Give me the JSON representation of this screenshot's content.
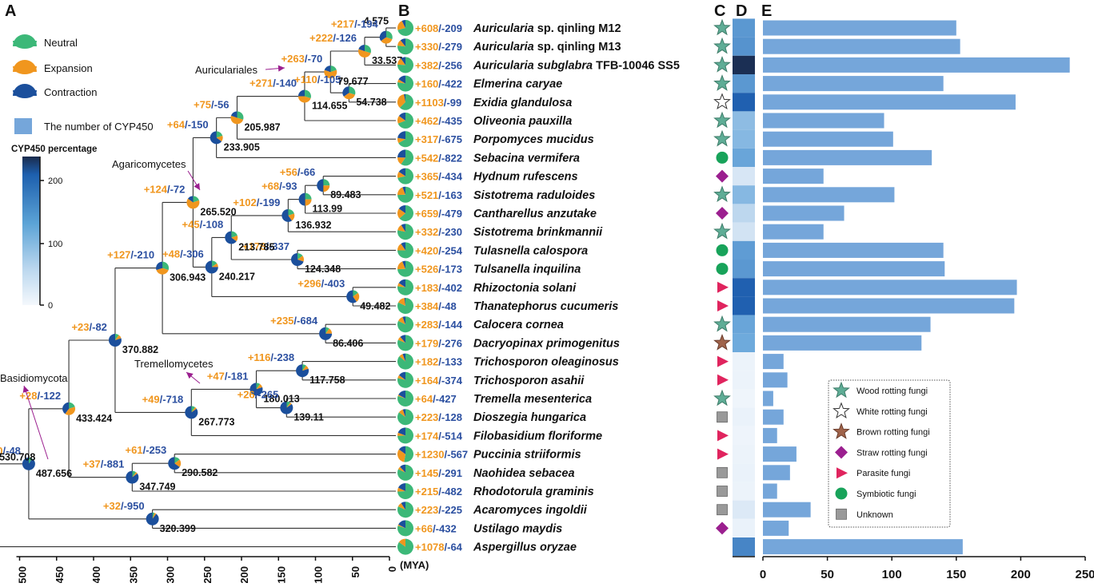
{
  "panels": {
    "a": "A",
    "b": "B",
    "c": "C",
    "d": "D",
    "e": "E"
  },
  "legend_a": {
    "neutral": "Neutral",
    "expansion": "Expansion",
    "contraction": "Contraction",
    "cyp_count": "The number of CYP450",
    "colorbar_title": "CYP450 percentage",
    "colorbar_ticks": [
      "200",
      "100",
      "0"
    ]
  },
  "colors": {
    "neutral": "#3cb878",
    "expansion": "#f0961e",
    "contraction": "#1b4f9c",
    "bar": "#75a6da",
    "wood": "#5fad96",
    "brown": "#a0634a",
    "straw": "#9b1f8f",
    "parasite": "#e0245e",
    "symbiotic": "#18a35a",
    "unknown": "#999999"
  },
  "clades": [
    "Auriculariales",
    "Agaricomycetes",
    "Tremellomycetes",
    "Basidiomycota"
  ],
  "axis_tree": {
    "ticks": [
      "500",
      "450",
      "400",
      "350",
      "300",
      "250",
      "200",
      "150",
      "100",
      "50",
      "0"
    ],
    "unit": "(MYA)"
  },
  "nodes": [
    {
      "id": "n1",
      "age": 4.575,
      "label": "4.575",
      "gain": "+217",
      "loss": "/-194",
      "pie": [
        0.3,
        0.35,
        0.35
      ]
    },
    {
      "id": "n2",
      "age": 33.537,
      "label": "33.537",
      "gain": "+222",
      "loss": "/-126",
      "pie": [
        0.3,
        0.5,
        0.2
      ]
    },
    {
      "id": "n3",
      "age": 54.738,
      "label": "54.738",
      "gain": "+110",
      "loss": "/-105",
      "pie": [
        0.3,
        0.35,
        0.35
      ]
    },
    {
      "id": "n4",
      "age": 79.677,
      "label": "79.677",
      "gain": "+263",
      "loss": "/-70",
      "pie": [
        0.2,
        0.6,
        0.2
      ]
    },
    {
      "id": "n5",
      "age": 114.655,
      "label": "114.655",
      "gain": "+271",
      "loss": "/-140",
      "pie": [
        0.3,
        0.45,
        0.25
      ]
    },
    {
      "id": "n6",
      "age": 205.987,
      "label": "205.987",
      "gain": "+75",
      "loss": "/-56",
      "pie": [
        0.3,
        0.5,
        0.2
      ]
    },
    {
      "id": "n7",
      "age": 233.905,
      "label": "233.905",
      "gain": "+64",
      "loss": "/-150",
      "pie": [
        0.2,
        0.15,
        0.65
      ]
    },
    {
      "id": "n8",
      "age": 89.483,
      "label": "89.483",
      "gain": "+56",
      "loss": "/-66",
      "pie": [
        0.25,
        0.25,
        0.5
      ]
    },
    {
      "id": "n9",
      "age": 113.99,
      "label": "113.99",
      "gain": "+68",
      "loss": "/-93",
      "pie": [
        0.25,
        0.25,
        0.5
      ]
    },
    {
      "id": "n10",
      "age": 136.932,
      "label": "136.932",
      "gain": "+102",
      "loss": "/-199",
      "pie": [
        0.2,
        0.2,
        0.6
      ]
    },
    {
      "id": "n11",
      "age": 124.348,
      "label": "124.348",
      "gain": "+176",
      "loss": "/-337",
      "pie": [
        0.15,
        0.15,
        0.7
      ]
    },
    {
      "id": "n12",
      "age": 213.785,
      "label": "213.785",
      "gain": "+45",
      "loss": "/-108",
      "pie": [
        0.2,
        0.15,
        0.65
      ]
    },
    {
      "id": "n13",
      "age": 49.482,
      "label": "49.482",
      "gain": "+296",
      "loss": "/-403",
      "pie": [
        0.15,
        0.25,
        0.6
      ]
    },
    {
      "id": "n14",
      "age": 240.217,
      "label": "240.217",
      "gain": "+48",
      "loss": "/-306",
      "pie": [
        0.15,
        0.1,
        0.75
      ]
    },
    {
      "id": "n15",
      "age": 265.52,
      "label": "265.520",
      "gain": "+124",
      "loss": "/-72",
      "pie": [
        0.2,
        0.65,
        0.15
      ]
    },
    {
      "id": "n16",
      "age": 86.406,
      "label": "86.406",
      "gain": "+235",
      "loss": "/-684",
      "pie": [
        0.1,
        0.15,
        0.75
      ]
    },
    {
      "id": "n17",
      "age": 306.943,
      "label": "306.943",
      "gain": "+127",
      "loss": "/-210",
      "pie": [
        0.3,
        0.4,
        0.3
      ]
    },
    {
      "id": "n18",
      "age": 370.882,
      "label": "370.882",
      "gain": "+23",
      "loss": "/-82",
      "pie": [
        0.1,
        0.1,
        0.8
      ]
    },
    {
      "id": "n19",
      "age": 117.758,
      "label": "117.758",
      "gain": "+116",
      "loss": "/-238",
      "pie": [
        0.1,
        0.1,
        0.8
      ]
    },
    {
      "id": "n20",
      "age": 180.013,
      "label": "180.013",
      "gain": "+47",
      "loss": "/-181",
      "pie": [
        0.1,
        0.1,
        0.8
      ]
    },
    {
      "id": "n21",
      "age": 139.11,
      "label": "139.11",
      "gain": "+26",
      "loss": "/-265",
      "pie": [
        0.1,
        0.05,
        0.85
      ]
    },
    {
      "id": "n22",
      "age": 267.773,
      "label": "267.773",
      "gain": "+49",
      "loss": "/-718",
      "pie": [
        0.1,
        0.05,
        0.85
      ]
    },
    {
      "id": "n23",
      "age": 433.424,
      "label": "433.424",
      "gain": "+28",
      "loss": "/-122",
      "pie": [
        0.2,
        0.4,
        0.4
      ]
    },
    {
      "id": "n24",
      "age": 290.582,
      "label": "290.582",
      "gain": "+61",
      "loss": "/-253",
      "pie": [
        0.15,
        0.2,
        0.65
      ]
    },
    {
      "id": "n25",
      "age": 347.749,
      "label": "347.749",
      "gain": "+37",
      "loss": "/-881",
      "pie": [
        0.1,
        0.05,
        0.85
      ]
    },
    {
      "id": "n26",
      "age": 487.656,
      "label": "487.656",
      "gain": "+0",
      "loss": "/-48",
      "pie": [
        0.1,
        0.0,
        0.9
      ]
    },
    {
      "id": "n27",
      "age": 320.399,
      "label": "320.399",
      "gain": "+32",
      "loss": "/-950",
      "pie": [
        0.05,
        0.05,
        0.9
      ]
    },
    {
      "id": "n28",
      "age": 530.708,
      "label": "530.708",
      "gain": "",
      "loss": "",
      "pie": [
        1,
        0,
        0
      ]
    }
  ],
  "taxa": [
    {
      "genus": "Auricularia",
      "rest": " sp. qinling M12",
      "gain": "+608",
      "loss": "/-209",
      "cyp": 150,
      "pct": 120,
      "life": "wood"
    },
    {
      "genus": "Auricularia",
      "rest": " sp. qinling M13",
      "gain": "+330",
      "loss": "/-279",
      "cyp": 153,
      "pct": 125,
      "life": "wood"
    },
    {
      "genus": "Auricularia subglabra",
      "rest": " TFB-10046 SS5",
      "gain": "+382",
      "loss": "/-256",
      "cyp": 238,
      "pct": 235,
      "life": "wood"
    },
    {
      "genus": "Elmerina caryae",
      "rest": "",
      "gain": "+160",
      "loss": "/-422",
      "cyp": 140,
      "pct": 120,
      "life": "wood"
    },
    {
      "genus": "Exidia glandulosa",
      "rest": "",
      "gain": "+1103",
      "loss": "/-99",
      "cyp": 196,
      "pct": 180,
      "life": "white"
    },
    {
      "genus": "Oliveonia pauxilla",
      "rest": "",
      "gain": "+462",
      "loss": "/-435",
      "cyp": 94,
      "pct": 80,
      "life": "wood"
    },
    {
      "genus": "Porpomyces mucidus",
      "rest": "",
      "gain": "+317",
      "loss": "/-675",
      "cyp": 101,
      "pct": 85,
      "life": "wood"
    },
    {
      "genus": "Sebacina vermifera",
      "rest": "",
      "gain": "+542",
      "loss": "/-822",
      "cyp": 131,
      "pct": 105,
      "life": "symbiotic"
    },
    {
      "genus": "Hydnum rufescens",
      "rest": "",
      "gain": "+365",
      "loss": "/-434",
      "cyp": 47,
      "pct": 30,
      "life": "straw"
    },
    {
      "genus": "Sistotrema raduloides",
      "rest": "",
      "gain": "+521",
      "loss": "/-163",
      "cyp": 102,
      "pct": 85,
      "life": "wood"
    },
    {
      "genus": "Cantharellus anzutake",
      "rest": "",
      "gain": "+659",
      "loss": "/-479",
      "cyp": 63,
      "pct": 50,
      "life": "straw"
    },
    {
      "genus": "Sistotrema brinkmannii",
      "rest": "",
      "gain": "+332",
      "loss": "/-230",
      "cyp": 47,
      "pct": 35,
      "life": "wood"
    },
    {
      "genus": "Tulasnella calospora",
      "rest": "",
      "gain": "+420",
      "loss": "/-254",
      "cyp": 140,
      "pct": 115,
      "life": "symbiotic"
    },
    {
      "genus": "Tulsanella inquilina",
      "rest": "",
      "gain": "+526",
      "loss": "/-173",
      "cyp": 141,
      "pct": 120,
      "life": "symbiotic"
    },
    {
      "genus": "Rhizoctonia solani",
      "rest": "",
      "gain": "+183",
      "loss": "/-402",
      "cyp": 197,
      "pct": 180,
      "life": "parasite"
    },
    {
      "genus": "Thanatephorus cucumeris",
      "rest": "",
      "gain": "+384",
      "loss": "/-48",
      "cyp": 195,
      "pct": 180,
      "life": "parasite"
    },
    {
      "genus": "Calocera cornea",
      "rest": "",
      "gain": "+283",
      "loss": "/-144",
      "cyp": 130,
      "pct": 105,
      "life": "wood"
    },
    {
      "genus": "Dacryopinax primogenitus",
      "rest": "",
      "gain": "+179",
      "loss": "/-276",
      "cyp": 123,
      "pct": 100,
      "life": "brown"
    },
    {
      "genus": "Trichosporon oleaginosus",
      "rest": "",
      "gain": "+182",
      "loss": "/-133",
      "cyp": 16,
      "pct": 8,
      "life": "parasite"
    },
    {
      "genus": "Trichosporon asahii",
      "rest": "",
      "gain": "+164",
      "loss": "/-374",
      "cyp": 19,
      "pct": 8,
      "life": "parasite"
    },
    {
      "genus": "Tremella mesenterica",
      "rest": "",
      "gain": "+64",
      "loss": "/-427",
      "cyp": 8,
      "pct": 5,
      "life": "wood"
    },
    {
      "genus": "Dioszegia hungarica",
      "rest": "",
      "gain": "+223",
      "loss": "/-128",
      "cyp": 16,
      "pct": 10,
      "life": "unknown"
    },
    {
      "genus": "Filobasidium floriforme",
      "rest": "",
      "gain": "+174",
      "loss": "/-514",
      "cyp": 11,
      "pct": 6,
      "life": "parasite"
    },
    {
      "genus": "Puccinia striiformis",
      "rest": "",
      "gain": "+1230",
      "loss": "/-567",
      "cyp": 26,
      "pct": 8,
      "life": "parasite"
    },
    {
      "genus": "Naohidea sebacea",
      "rest": "",
      "gain": "+145",
      "loss": "/-291",
      "cyp": 21,
      "pct": 10,
      "life": "unknown"
    },
    {
      "genus": "Rhodotorula graminis",
      "rest": "",
      "gain": "+215",
      "loss": "/-482",
      "cyp": 11,
      "pct": 8,
      "life": "unknown"
    },
    {
      "genus": "Acaromyces ingoldii",
      "rest": "",
      "gain": "+223",
      "loss": "/-225",
      "cyp": 37,
      "pct": 25,
      "life": "unknown"
    },
    {
      "genus": "Ustilago maydis",
      "rest": "",
      "gain": "+66",
      "loss": "/-432",
      "cyp": 20,
      "pct": 10,
      "life": "straw"
    },
    {
      "genus": "Aspergillus oryzae",
      "rest": "",
      "gain": "+1078",
      "loss": "/-64",
      "cyp": 155,
      "pct": 140,
      "life": "wood_none"
    }
  ],
  "lifestyle_legend": [
    {
      "key": "wood",
      "label": "Wood rotting fungi"
    },
    {
      "key": "white",
      "label": "White rotting fungi"
    },
    {
      "key": "brown",
      "label": "Brown rotting fungi"
    },
    {
      "key": "straw",
      "label": "Straw rotting fungi"
    },
    {
      "key": "parasite",
      "label": "Parasite fungi"
    },
    {
      "key": "symbiotic",
      "label": "Symbiotic fungi"
    },
    {
      "key": "unknown",
      "label": "Unknown"
    }
  ],
  "chart_data": {
    "type": "bar",
    "orientation": "horizontal",
    "categories": [
      "Auricularia sp. qinling M12",
      "Auricularia sp. qinling M13",
      "Auricularia subglabra TFB-10046 SS5",
      "Elmerina caryae",
      "Exidia glandulosa",
      "Oliveonia pauxilla",
      "Porpomyces mucidus",
      "Sebacina vermifera",
      "Hydnum rufescens",
      "Sistotrema raduloides",
      "Cantharellus anzutake",
      "Sistotrema brinkmannii",
      "Tulasnella calospora",
      "Tulsanella inquilina",
      "Rhizoctonia solani",
      "Thanatephorus cucumeris",
      "Calocera cornea",
      "Dacryopinax primogenitus",
      "Trichosporon oleaginosus",
      "Trichosporon asahii",
      "Tremella mesenterica",
      "Dioszegia hungarica",
      "Filobasidium floriforme",
      "Puccinia striiformis",
      "Naohidea sebacea",
      "Rhodotorula graminis",
      "Acaromyces ingoldii",
      "Ustilago maydis",
      "Aspergillus oryzae"
    ],
    "values": [
      150,
      153,
      238,
      140,
      196,
      94,
      101,
      131,
      47,
      102,
      63,
      47,
      140,
      141,
      197,
      195,
      130,
      123,
      16,
      19,
      8,
      16,
      11,
      26,
      21,
      11,
      37,
      20,
      155
    ],
    "xlim": [
      0,
      250
    ],
    "xticks": [
      "0",
      "50",
      "100",
      "150",
      "200",
      "250"
    ],
    "ylabel": "",
    "xlabel": ""
  }
}
